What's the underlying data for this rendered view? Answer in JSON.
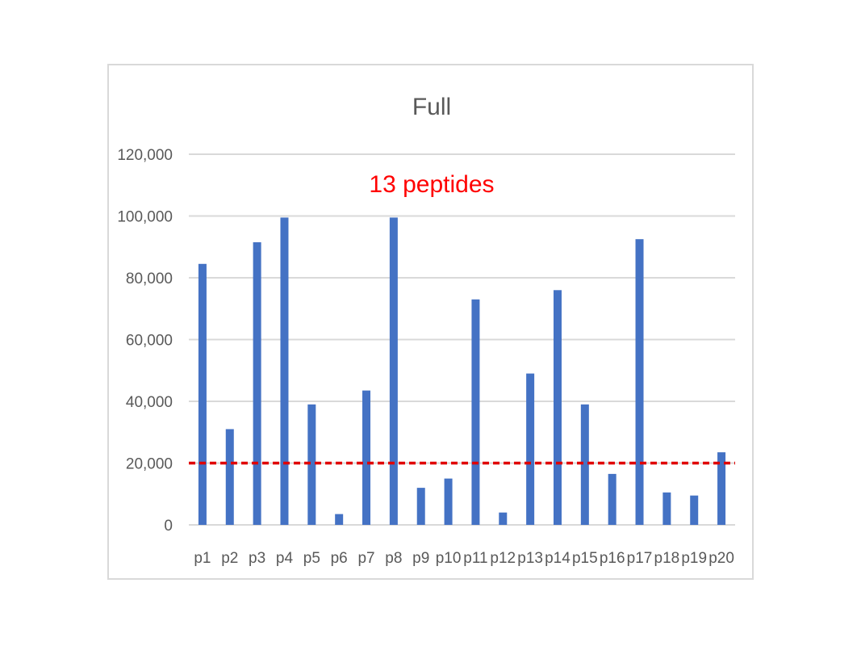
{
  "chart_data": {
    "type": "bar",
    "title": "Full",
    "annotation": "13 peptides",
    "categories": [
      "p1",
      "p2",
      "p3",
      "p4",
      "p5",
      "p6",
      "p7",
      "p8",
      "p9",
      "p10",
      "p11",
      "p12",
      "p13",
      "p14",
      "p15",
      "p16",
      "p17",
      "p18",
      "p19",
      "p20"
    ],
    "series": [
      {
        "values": [
          84500,
          31000,
          91500,
          99500,
          39000,
          3500,
          43500,
          99500,
          12000,
          15000,
          73000,
          4000,
          49000,
          76000,
          39000,
          16500,
          92500,
          10500,
          9500,
          23500
        ]
      }
    ],
    "ylim": [
      0,
      120000
    ],
    "yticks": [
      0,
      20000,
      40000,
      60000,
      80000,
      100000,
      120000
    ],
    "ytick_labels": [
      "0",
      "20,000",
      "40,000",
      "60,000",
      "80,000",
      "100,000",
      "120,000"
    ],
    "threshold": 20000,
    "grid": true,
    "legend": "none",
    "colors": {
      "bar": "#4472c4",
      "threshold": "#e00000",
      "grid": "#d9d9d9",
      "text": "#595959",
      "annotation": "#ff0000"
    }
  }
}
